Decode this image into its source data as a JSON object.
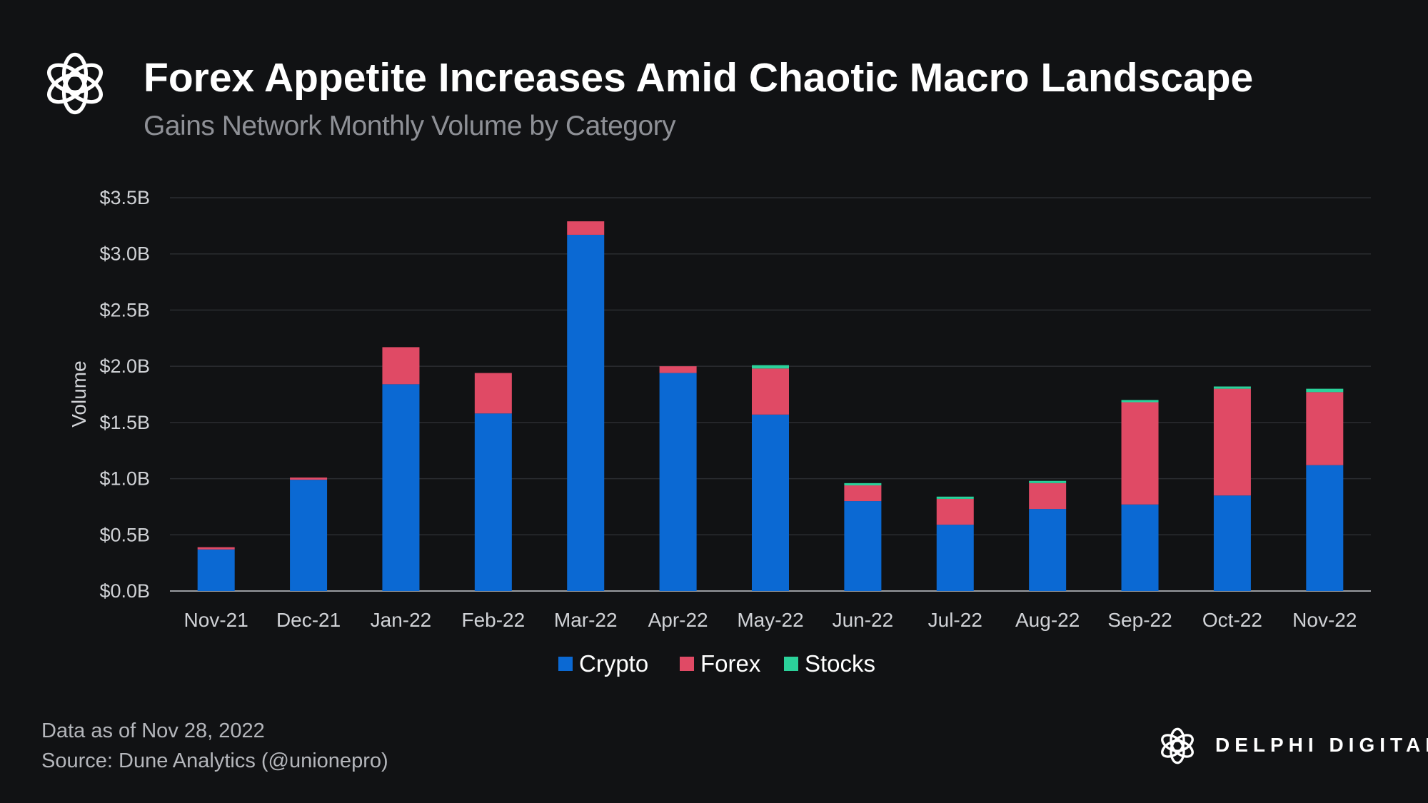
{
  "header": {
    "title": "Forex Appetite Increases Amid Chaotic Macro Landscape",
    "subtitle": "Gains Network Monthly Volume by Category"
  },
  "footer": {
    "line1": "Data as of Nov 28, 2022",
    "line2": "Source: Dune Analytics  (@unionepro)"
  },
  "brand": {
    "name": "DELPHI DIGITAL"
  },
  "colors": {
    "background": "#111214",
    "crypto": "#0b69d3",
    "forex": "#e04a65",
    "stocks": "#2bd19a",
    "grid": "#2b2d31",
    "axis_text": "#d0d2d6"
  },
  "chart_data": {
    "type": "bar",
    "stacked": true,
    "title": "Forex Appetite Increases Amid Chaotic Macro Landscape",
    "subtitle": "Gains Network Monthly Volume by Category",
    "xlabel": "",
    "ylabel": "Volume",
    "ylim": [
      0,
      3.5
    ],
    "y_ticks": [
      0,
      0.5,
      1.0,
      1.5,
      2.0,
      2.5,
      3.0,
      3.5
    ],
    "y_tick_labels": [
      "$0.0B",
      "$0.5B",
      "$1.0B",
      "$1.5B",
      "$2.0B",
      "$2.5B",
      "$3.0B",
      "$3.5B"
    ],
    "grid": true,
    "legend_position": "bottom-center",
    "categories": [
      "Nov-21",
      "Dec-21",
      "Jan-22",
      "Feb-22",
      "Mar-22",
      "Apr-22",
      "May-22",
      "Jun-22",
      "Jul-22",
      "Aug-22",
      "Sep-22",
      "Oct-22",
      "Nov-22"
    ],
    "series": [
      {
        "name": "Crypto",
        "values": [
          0.37,
          0.99,
          1.84,
          1.58,
          3.17,
          1.94,
          1.57,
          0.8,
          0.59,
          0.73,
          0.77,
          0.85,
          1.12
        ]
      },
      {
        "name": "Forex",
        "values": [
          0.02,
          0.02,
          0.33,
          0.36,
          0.12,
          0.06,
          0.41,
          0.14,
          0.23,
          0.23,
          0.91,
          0.95,
          0.65
        ]
      },
      {
        "name": "Stocks",
        "values": [
          0.0,
          0.0,
          0.0,
          0.0,
          0.0,
          0.0,
          0.03,
          0.02,
          0.02,
          0.02,
          0.02,
          0.02,
          0.03
        ]
      }
    ]
  }
}
